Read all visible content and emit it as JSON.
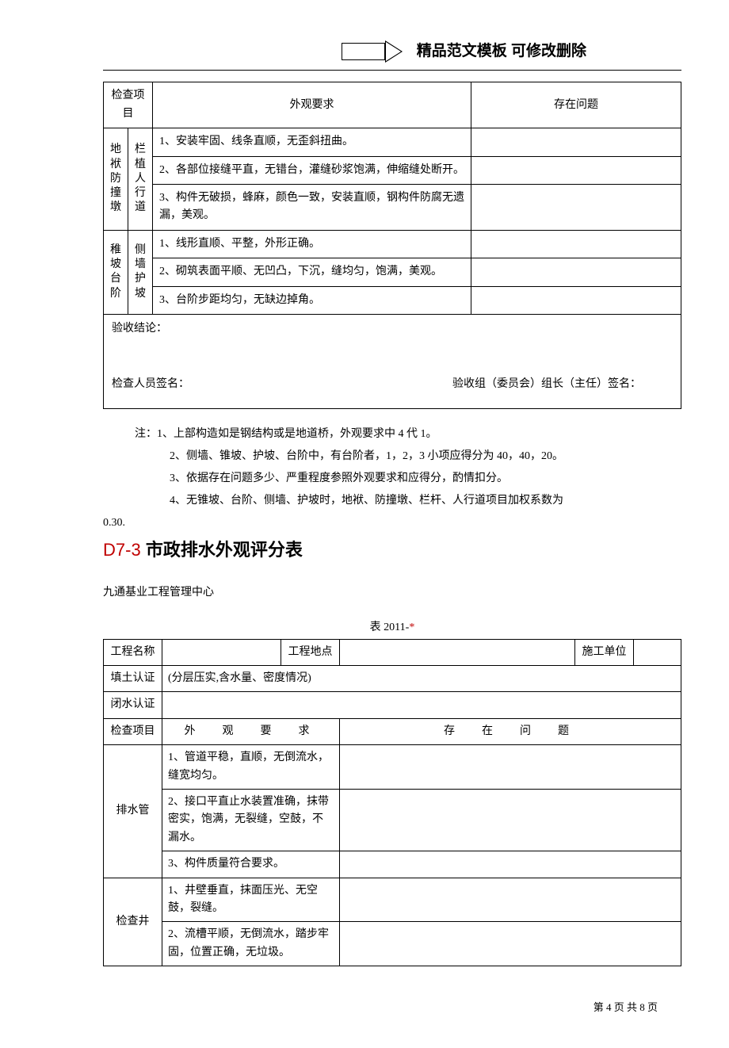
{
  "banner": {
    "text": "精品范文模板  可修改删除"
  },
  "table1": {
    "headers": {
      "col1": "检查项目",
      "col2": "外观要求",
      "col3": "存在问题"
    },
    "group1": {
      "left": "地袱防撞墩",
      "right": "栏植人行道",
      "rows": [
        "1、安装牢固、线条直顺，无歪斜扭曲。",
        "2、各部位接缝平直，无错台，灌缝砂浆饱满，伸缩缝处断开。",
        "3、构件无破损，蜂麻，颜色一致，安装直顺，钢构件防腐无遗漏，美观。"
      ]
    },
    "group2": {
      "left": "稚坡台阶",
      "right": "侧墙护坡",
      "rows": [
        "1、线形直顺、平整，外形正确。",
        "2、砌筑表面平顺、无凹凸，下沉，缝均匀，饱满，美观。",
        "3、台阶步距均匀，无缺边掉角。"
      ]
    }
  },
  "conclusion": {
    "label": "验收结论：",
    "sign1": "检查人员签名：",
    "sign2": "验收组（委员会）组长（主任）签名："
  },
  "notes": {
    "prefix": "注：",
    "lines": [
      "1、上部构造如是钢结构或是地道桥，外观要求中 4 代 1。",
      "2、侧墙、锥坡、护坡、台阶中，有台阶者，1，2，3 小项应得分为 40，40，20。",
      "3、依据存在问题多少、严重程度参照外观要求和应得分，酌情扣分。",
      "4、无锥坡、台阶、侧墙、护坡时，地袱、防撞墩、栏杆、人行道项目加权系数为"
    ],
    "tail": "0.30."
  },
  "section": {
    "code": "D7-3",
    "title": "市政排水外观评分表"
  },
  "org": "九通基业工程管理中心",
  "table2": {
    "caption_prefix": "表 2011-",
    "caption_star": "*",
    "row1": {
      "c1": "工程名称",
      "c2": "",
      "c3": "工程地点",
      "c4": "",
      "c5": "施工单位",
      "c6": ""
    },
    "row2": {
      "c1": "填土认证",
      "c2": "(分层压实,含水量、密度情况)"
    },
    "row3": {
      "c1": "闭水认证"
    },
    "row4": {
      "c1": "检查项目",
      "c2": "外　观　要　求",
      "c3": "存　在　问　题"
    },
    "groupA": {
      "label": "排水管",
      "rows": [
        "1、管道平稳，直顺，无倒流水，缝宽均匀。",
        "2、接口平直止水装置准确，抹带密实，饱满，无裂缝，空鼓，不漏水。",
        "3、构件质量符合要求。"
      ]
    },
    "groupB": {
      "label": "检查井",
      "rows": [
        "1、井壁垂直，抹面压光、无空鼓，裂缝。",
        "2、流槽平顺，无倒流水，踏步牢固，位置正确，无垃圾。"
      ]
    }
  },
  "footer": {
    "text": "第 4 页 共 8 页"
  }
}
